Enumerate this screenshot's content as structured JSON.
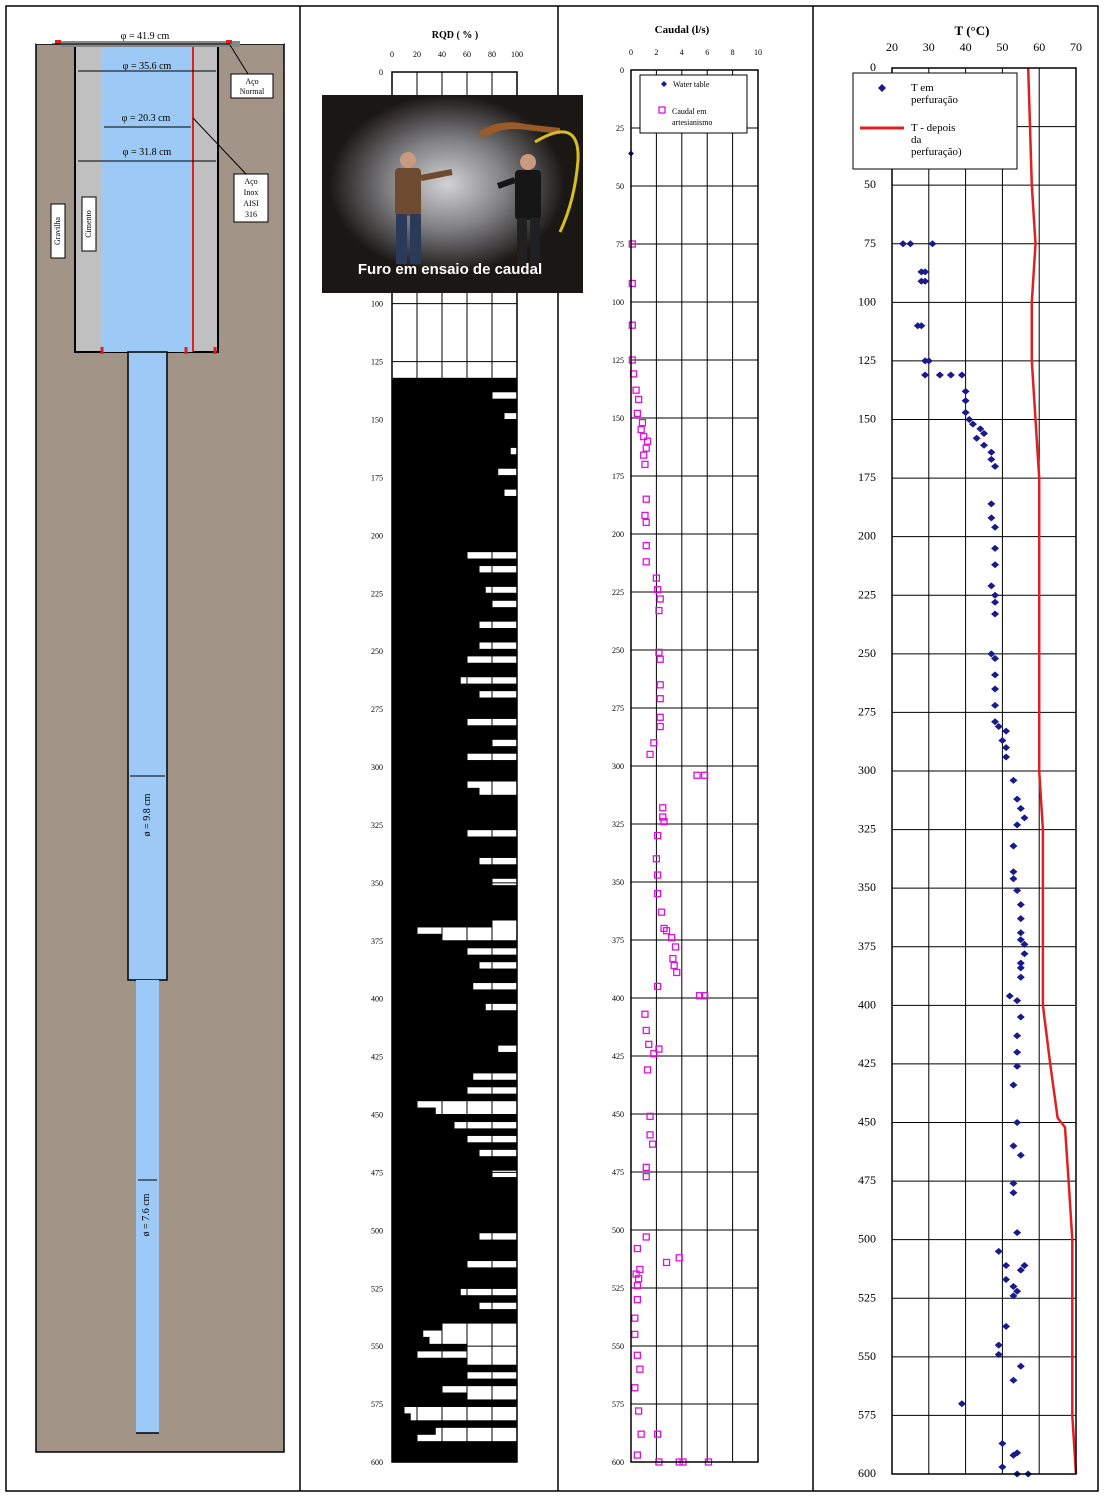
{
  "well": {
    "labels": {
      "d1": "φ = 41.9 cm",
      "d2": "φ = 35.6 cm",
      "d3": "φ = 20.3 cm",
      "d4": "φ = 31.8 cm",
      "d5": "ø = 9.8 cm",
      "d6": "ø = 7.6 cm",
      "steel_normal": [
        "Aço",
        "Normal"
      ],
      "steel_inox": [
        "Aço",
        "Inox",
        "AISI",
        "316"
      ],
      "gravel": "Gravilha",
      "cement": "Cimento"
    },
    "colors": {
      "rock": "#a39488",
      "casing": "#c0c0c0",
      "water": "#9cc9f5",
      "steel": "#e02020"
    }
  },
  "photo": {
    "caption": "Furo em ensaio de caudal"
  },
  "chart_data": [
    {
      "type": "bar",
      "title": "RQD ( % )",
      "xlim": [
        0,
        100
      ],
      "xticks": [
        "0",
        "20",
        "40",
        "60",
        "80",
        "100"
      ],
      "ylim": [
        0,
        600
      ],
      "yticks": [
        "0",
        "25",
        "50",
        "75",
        "100",
        "125",
        "150",
        "175",
        "200",
        "225",
        "250",
        "275",
        "300",
        "325",
        "350",
        "375",
        "400",
        "425",
        "450",
        "475",
        "500",
        "525",
        "550",
        "575",
        "600"
      ],
      "depth_from": 132,
      "depth_step": 3,
      "values": [
        100,
        100,
        80,
        100,
        100,
        90,
        100,
        100,
        100,
        100,
        95,
        100,
        100,
        85,
        100,
        100,
        90,
        100,
        100,
        100,
        100,
        100,
        100,
        100,
        100,
        60,
        100,
        70,
        100,
        100,
        75,
        100,
        80,
        100,
        100,
        70,
        100,
        100,
        70,
        100,
        60,
        100,
        100,
        55,
        100,
        70,
        100,
        100,
        100,
        60,
        100,
        100,
        80,
        100,
        60,
        100,
        100,
        100,
        60,
        70,
        100,
        100,
        100,
        100,
        100,
        60,
        100,
        100,
        100,
        70,
        100,
        100,
        80,
        100,
        100,
        100,
        100,
        100,
        80,
        20,
        40,
        100,
        60,
        100,
        70,
        100,
        100,
        65,
        100,
        100,
        75,
        100,
        100,
        100,
        100,
        100,
        85,
        100,
        100,
        100,
        65,
        100,
        60,
        100,
        20,
        35,
        100,
        50,
        100,
        60,
        100,
        70,
        100,
        100,
        80,
        100,
        100,
        100,
        100,
        100,
        100,
        100,
        100,
        70,
        100,
        100,
        100,
        60,
        100,
        100,
        100,
        55,
        100,
        70,
        100,
        100,
        40,
        25,
        30,
        60,
        20,
        60,
        100,
        60,
        100,
        40,
        60,
        100,
        10,
        15,
        100,
        35,
        20,
        100,
        100,
        100,
        100,
        85,
        100,
        100,
        90,
        100,
        100,
        80,
        100,
        60,
        100,
        100,
        100,
        100,
        90,
        70,
        100,
        100,
        80,
        100,
        100,
        100,
        100,
        100,
        80,
        65,
        100,
        70,
        100,
        100,
        85,
        70,
        100,
        100,
        100
      ]
    },
    {
      "type": "scatter",
      "title": "Caudal (l/s)",
      "xlim": [
        0,
        10
      ],
      "xticks": [
        "0",
        "2",
        "4",
        "6",
        "8",
        "10"
      ],
      "ylim": [
        0,
        600
      ],
      "yticks": [
        "0",
        "25",
        "50",
        "75",
        "100",
        "125",
        "150",
        "175",
        "200",
        "225",
        "250",
        "275",
        "300",
        "325",
        "350",
        "375",
        "400",
        "425",
        "450",
        "475",
        "500",
        "525",
        "550",
        "575",
        "600"
      ],
      "legend": "top-right",
      "series": [
        {
          "name": "Water table",
          "color": "#1a1a8c",
          "marker": "diamond",
          "points": [
            [
              0,
              36
            ]
          ]
        },
        {
          "name": "Caudal em artesianismo",
          "color": "#e010e0",
          "marker": "square",
          "points": [
            [
              0.1,
              75
            ],
            [
              0.1,
              92
            ],
            [
              0.1,
              110
            ],
            [
              0.1,
              125
            ],
            [
              0.2,
              131
            ],
            [
              0.4,
              138
            ],
            [
              0.6,
              142
            ],
            [
              0.5,
              148
            ],
            [
              0.9,
              152
            ],
            [
              0.8,
              155
            ],
            [
              1.0,
              158
            ],
            [
              1.3,
              160
            ],
            [
              1.2,
              163
            ],
            [
              1.0,
              166
            ],
            [
              1.1,
              170
            ],
            [
              1.2,
              185
            ],
            [
              1.1,
              192
            ],
            [
              1.2,
              195
            ],
            [
              1.2,
              205
            ],
            [
              1.2,
              212
            ],
            [
              2.0,
              219
            ],
            [
              2.1,
              224
            ],
            [
              2.3,
              228
            ],
            [
              2.2,
              233
            ],
            [
              2.2,
              251
            ],
            [
              2.3,
              254
            ],
            [
              2.3,
              265
            ],
            [
              2.3,
              271
            ],
            [
              2.3,
              279
            ],
            [
              2.3,
              283
            ],
            [
              1.8,
              290
            ],
            [
              1.5,
              295
            ],
            [
              5.2,
              304
            ],
            [
              5.8,
              304
            ],
            [
              2.5,
              318
            ],
            [
              2.5,
              322
            ],
            [
              2.6,
              324
            ],
            [
              2.1,
              330
            ],
            [
              2.0,
              340
            ],
            [
              2.1,
              347
            ],
            [
              2.1,
              355
            ],
            [
              2.4,
              363
            ],
            [
              2.6,
              370
            ],
            [
              2.8,
              371
            ],
            [
              3.2,
              374
            ],
            [
              3.5,
              378
            ],
            [
              3.3,
              383
            ],
            [
              3.4,
              386
            ],
            [
              3.6,
              389
            ],
            [
              2.1,
              395
            ],
            [
              5.4,
              399
            ],
            [
              5.8,
              399
            ],
            [
              1.1,
              407
            ],
            [
              1.2,
              414
            ],
            [
              1.4,
              420
            ],
            [
              1.8,
              424
            ],
            [
              2.2,
              422
            ],
            [
              1.3,
              431
            ],
            [
              1.5,
              451
            ],
            [
              1.5,
              459
            ],
            [
              1.7,
              463
            ],
            [
              1.2,
              473
            ],
            [
              1.2,
              477
            ],
            [
              1.2,
              503
            ],
            [
              0.5,
              508
            ],
            [
              3.8,
              512
            ],
            [
              2.8,
              514
            ],
            [
              0.7,
              517
            ],
            [
              0.4,
              519
            ],
            [
              0.6,
              521
            ],
            [
              0.5,
              524
            ],
            [
              0.5,
              530
            ],
            [
              0.3,
              538
            ],
            [
              0.3,
              545
            ],
            [
              0.5,
              554
            ],
            [
              0.7,
              560
            ],
            [
              0.3,
              568
            ],
            [
              0.6,
              578
            ],
            [
              0.8,
              588
            ],
            [
              2.1,
              588
            ],
            [
              0.5,
              597
            ],
            [
              2.2,
              600
            ],
            [
              3.8,
              600
            ],
            [
              4.1,
              600
            ],
            [
              6.1,
              600
            ]
          ]
        }
      ]
    },
    {
      "type": "line",
      "title": "T (°C)",
      "xlim": [
        20,
        70
      ],
      "xticks": [
        "20",
        "30",
        "40",
        "50",
        "60",
        "70"
      ],
      "ylim": [
        0,
        600
      ],
      "yticks": [
        "0",
        "25",
        "50",
        "75",
        "100",
        "125",
        "150",
        "175",
        "200",
        "225",
        "250",
        "275",
        "300",
        "325",
        "350",
        "375",
        "400",
        "425",
        "450",
        "475",
        "500",
        "525",
        "550",
        "575",
        "600"
      ],
      "legend": "top-left",
      "series": [
        {
          "name": "T em perfuração",
          "color": "#1a1a8c",
          "marker": "diamond",
          "points": [
            [
              23,
              75
            ],
            [
              25,
              75
            ],
            [
              31,
              75
            ],
            [
              28,
              87
            ],
            [
              29,
              87
            ],
            [
              28,
              91
            ],
            [
              29,
              91
            ],
            [
              27,
              110
            ],
            [
              28,
              110
            ],
            [
              29,
              125
            ],
            [
              30,
              125
            ],
            [
              29,
              131
            ],
            [
              33,
              131
            ],
            [
              36,
              131
            ],
            [
              39,
              131
            ],
            [
              40,
              138
            ],
            [
              40,
              142
            ],
            [
              40,
              147
            ],
            [
              41,
              150
            ],
            [
              42,
              152
            ],
            [
              44,
              154
            ],
            [
              45,
              156
            ],
            [
              43,
              158
            ],
            [
              45,
              161
            ],
            [
              47,
              164
            ],
            [
              47,
              167
            ],
            [
              48,
              170
            ],
            [
              47,
              186
            ],
            [
              47,
              192
            ],
            [
              48,
              196
            ],
            [
              48,
              205
            ],
            [
              48,
              212
            ],
            [
              47,
              221
            ],
            [
              48,
              225
            ],
            [
              48,
              228
            ],
            [
              48,
              233
            ],
            [
              47,
              250
            ],
            [
              48,
              252
            ],
            [
              48,
              259
            ],
            [
              48,
              265
            ],
            [
              48,
              272
            ],
            [
              48,
              279
            ],
            [
              49,
              281
            ],
            [
              51,
              283
            ],
            [
              50,
              287
            ],
            [
              51,
              290
            ],
            [
              51,
              294
            ],
            [
              53,
              304
            ],
            [
              54,
              312
            ],
            [
              55,
              316
            ],
            [
              56,
              320
            ],
            [
              54,
              323
            ],
            [
              53,
              332
            ],
            [
              53,
              343
            ],
            [
              54,
              351
            ],
            [
              53,
              346
            ],
            [
              55,
              357
            ],
            [
              55,
              363
            ],
            [
              55,
              369
            ],
            [
              55,
              372
            ],
            [
              56,
              374
            ],
            [
              56,
              378
            ],
            [
              55,
              382
            ],
            [
              55,
              384
            ],
            [
              55,
              388
            ],
            [
              52,
              396
            ],
            [
              54,
              398
            ],
            [
              55,
              405
            ],
            [
              54,
              413
            ],
            [
              54,
              420
            ],
            [
              54,
              426
            ],
            [
              53,
              434
            ],
            [
              54,
              450
            ],
            [
              53,
              460
            ],
            [
              55,
              464
            ],
            [
              53,
              476
            ],
            [
              53,
              480
            ],
            [
              54,
              497
            ],
            [
              49,
              505
            ],
            [
              51,
              511
            ],
            [
              56,
              511
            ],
            [
              55,
              513
            ],
            [
              51,
              517
            ],
            [
              53,
              520
            ],
            [
              53,
              524
            ],
            [
              54,
              522
            ],
            [
              51,
              537
            ],
            [
              49,
              545
            ],
            [
              49,
              549
            ],
            [
              55,
              554
            ],
            [
              53,
              560
            ],
            [
              39,
              570
            ],
            [
              50,
              587
            ],
            [
              54,
              591
            ],
            [
              53,
              592
            ],
            [
              50,
              597
            ],
            [
              54,
              600
            ],
            [
              57,
              600
            ]
          ]
        },
        {
          "name": "T - depois da perfuração)",
          "color": "#e02020",
          "marker": "line",
          "points": [
            [
              57,
              0
            ],
            [
              58,
              50
            ],
            [
              59,
              75
            ],
            [
              58,
              100
            ],
            [
              58,
              125
            ],
            [
              59,
              150
            ],
            [
              60,
              175
            ],
            [
              60,
              200
            ],
            [
              60,
              225
            ],
            [
              60,
              250
            ],
            [
              60,
              275
            ],
            [
              60,
              300
            ],
            [
              61,
              325
            ],
            [
              61,
              350
            ],
            [
              61,
              375
            ],
            [
              61,
              400
            ],
            [
              63,
              425
            ],
            [
              65,
              448
            ],
            [
              67,
              452
            ],
            [
              68,
              475
            ],
            [
              69,
              500
            ],
            [
              69,
              525
            ],
            [
              69,
              550
            ],
            [
              69,
              575
            ],
            [
              70,
              600
            ]
          ]
        }
      ]
    }
  ]
}
